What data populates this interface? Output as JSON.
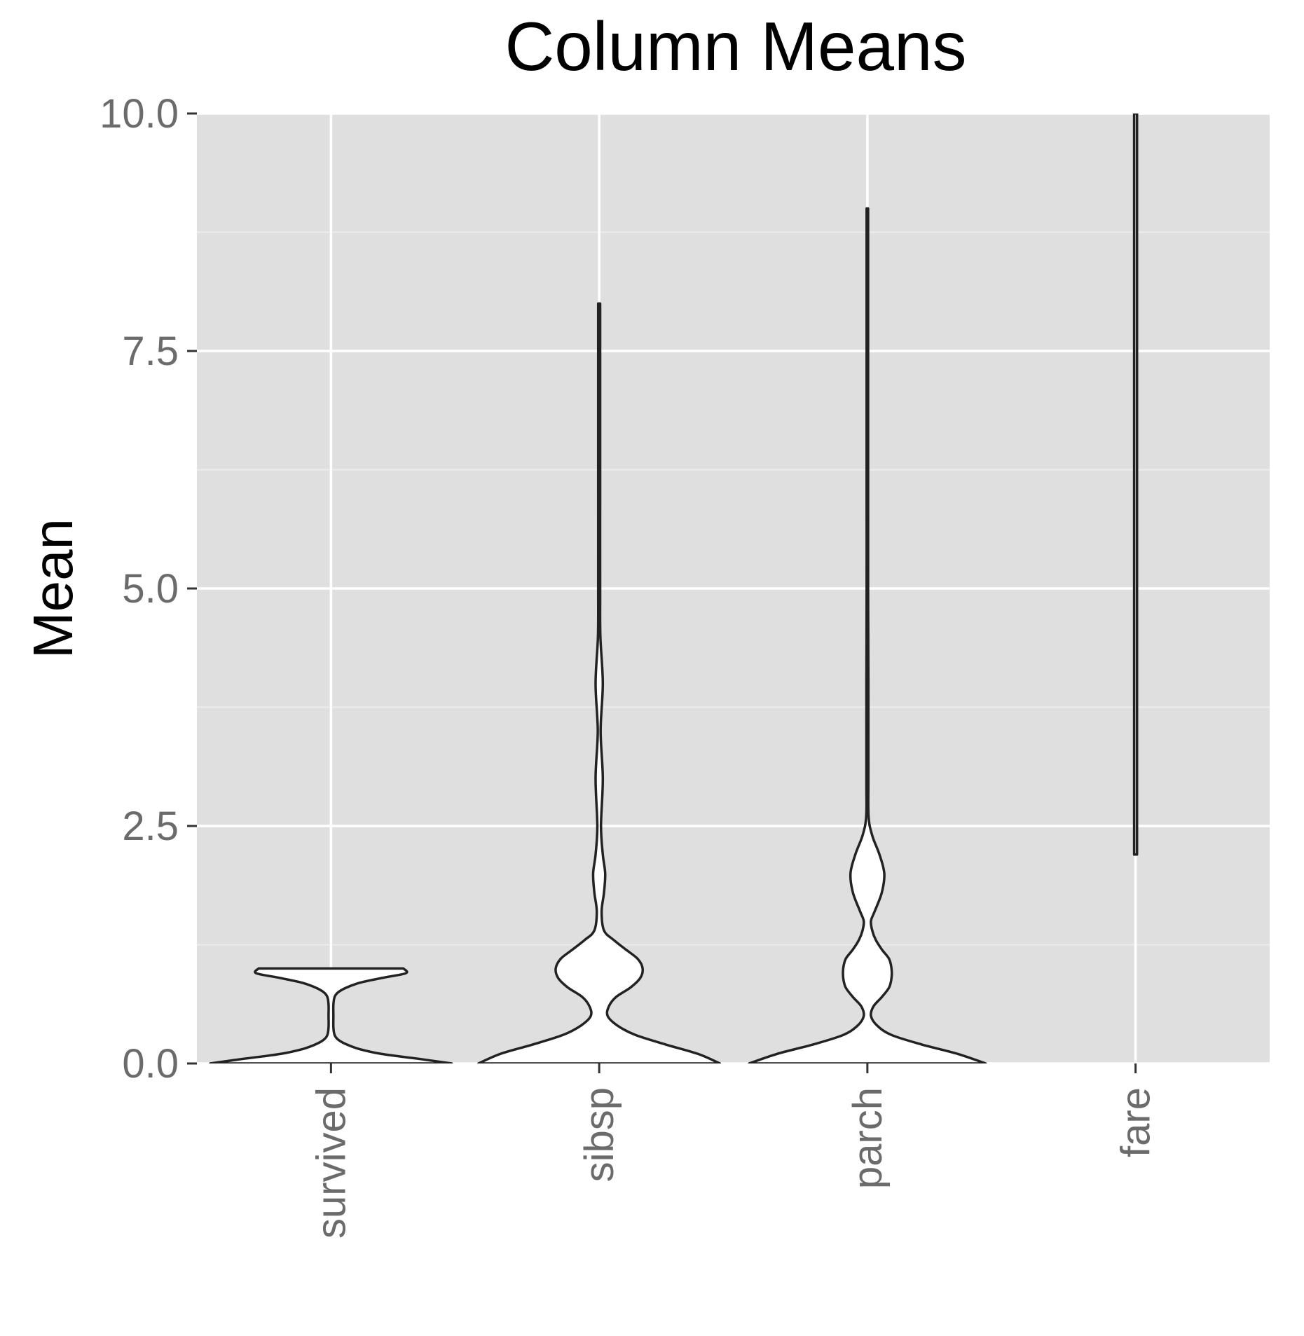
{
  "chart_data": {
    "type": "violin",
    "title": "Column Means",
    "xlabel": "",
    "ylabel": "Mean",
    "ylim": [
      0,
      10
    ],
    "y_ticks": [
      "0.0",
      "2.5",
      "5.0",
      "7.5",
      "10.0"
    ],
    "y_tick_values": [
      0,
      2.5,
      5,
      7.5,
      10
    ],
    "grid": true,
    "legend": "none",
    "background_color": "#dfdfdf",
    "outline_color": "#222222",
    "fill_color": "#ffffff",
    "categories": [
      "survived",
      "sibsp",
      "parch",
      "fare"
    ],
    "series": [
      {
        "category": "survived",
        "min": 0,
        "max": 1,
        "profile": [
          [
            0,
            1.0
          ],
          [
            0.05,
            0.72
          ],
          [
            0.1,
            0.42
          ],
          [
            0.15,
            0.24
          ],
          [
            0.2,
            0.13
          ],
          [
            0.25,
            0.06
          ],
          [
            0.3,
            0.03
          ],
          [
            0.38,
            0.02
          ],
          [
            0.5,
            0.02
          ],
          [
            0.62,
            0.02
          ],
          [
            0.7,
            0.03
          ],
          [
            0.75,
            0.06
          ],
          [
            0.8,
            0.13
          ],
          [
            0.85,
            0.24
          ],
          [
            0.9,
            0.42
          ],
          [
            0.95,
            0.62
          ],
          [
            1.0,
            0.6
          ]
        ]
      },
      {
        "category": "sibsp",
        "min": 0,
        "max": 8,
        "profile": [
          [
            0,
            1.0
          ],
          [
            0.1,
            0.82
          ],
          [
            0.2,
            0.55
          ],
          [
            0.3,
            0.3
          ],
          [
            0.4,
            0.15
          ],
          [
            0.5,
            0.07
          ],
          [
            0.6,
            0.08
          ],
          [
            0.7,
            0.14
          ],
          [
            0.8,
            0.26
          ],
          [
            0.9,
            0.34
          ],
          [
            1.0,
            0.36
          ],
          [
            1.1,
            0.32
          ],
          [
            1.2,
            0.22
          ],
          [
            1.3,
            0.12
          ],
          [
            1.4,
            0.04
          ],
          [
            1.6,
            0.02
          ],
          [
            1.8,
            0.04
          ],
          [
            2.0,
            0.05
          ],
          [
            2.2,
            0.03
          ],
          [
            2.5,
            0.015
          ],
          [
            3.0,
            0.03
          ],
          [
            3.5,
            0.012
          ],
          [
            4.0,
            0.03
          ],
          [
            4.5,
            0.01
          ],
          [
            5.0,
            0.008
          ],
          [
            6.0,
            0.008
          ],
          [
            7.0,
            0.008
          ],
          [
            8.0,
            0.008
          ]
        ]
      },
      {
        "category": "parch",
        "min": 0,
        "max": 9,
        "profile": [
          [
            0,
            0.98
          ],
          [
            0.1,
            0.75
          ],
          [
            0.2,
            0.45
          ],
          [
            0.3,
            0.2
          ],
          [
            0.4,
            0.08
          ],
          [
            0.5,
            0.03
          ],
          [
            0.6,
            0.05
          ],
          [
            0.7,
            0.12
          ],
          [
            0.8,
            0.18
          ],
          [
            0.9,
            0.2
          ],
          [
            1.0,
            0.2
          ],
          [
            1.1,
            0.18
          ],
          [
            1.2,
            0.12
          ],
          [
            1.3,
            0.07
          ],
          [
            1.4,
            0.04
          ],
          [
            1.5,
            0.03
          ],
          [
            1.6,
            0.06
          ],
          [
            1.8,
            0.12
          ],
          [
            2.0,
            0.14
          ],
          [
            2.2,
            0.1
          ],
          [
            2.4,
            0.04
          ],
          [
            2.6,
            0.01
          ],
          [
            3.0,
            0.008
          ],
          [
            4.0,
            0.008
          ],
          [
            5.0,
            0.006
          ],
          [
            6.0,
            0.006
          ],
          [
            7.0,
            0.006
          ],
          [
            8.0,
            0.006
          ],
          [
            9.0,
            0.006
          ]
        ]
      },
      {
        "category": "fare",
        "min": 2.2,
        "max": 10,
        "clipped_top": true,
        "profile": [
          [
            2.2,
            0.012
          ],
          [
            4,
            0.012
          ],
          [
            6,
            0.012
          ],
          [
            8,
            0.012
          ],
          [
            10,
            0.012
          ]
        ]
      }
    ]
  }
}
